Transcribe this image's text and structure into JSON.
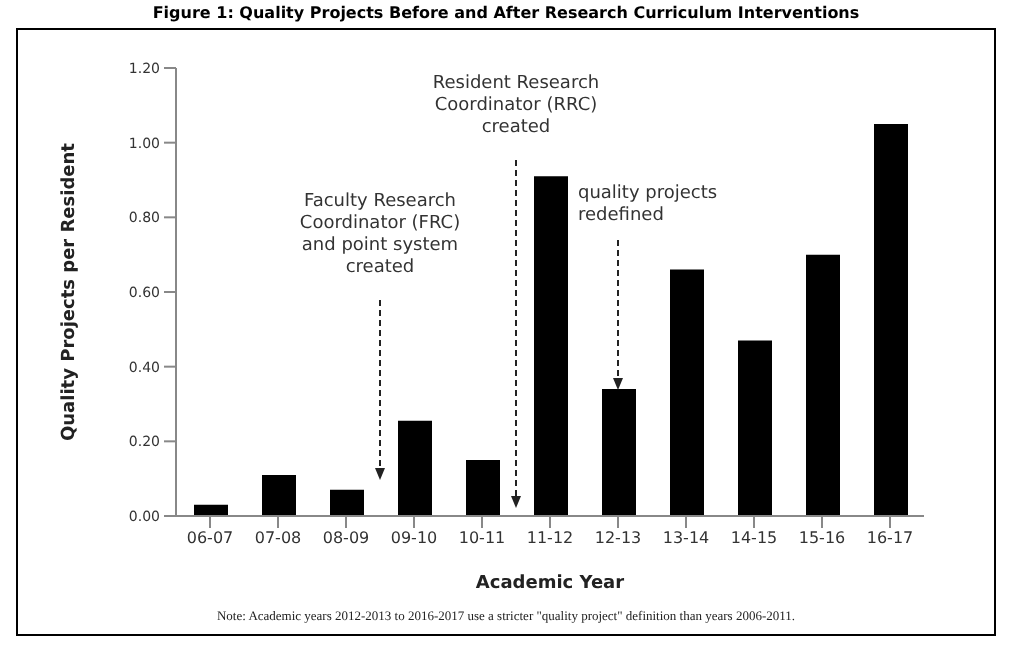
{
  "chart_data": {
    "type": "bar",
    "title": "Figure 1: Quality Projects Before and After Research Curriculum Interventions",
    "xlabel": "Academic Year",
    "ylabel": "Quality Projects per Resident",
    "categories": [
      "06-07",
      "07-08",
      "08-09",
      "09-10",
      "10-11",
      "11-12",
      "12-13",
      "13-14",
      "14-15",
      "15-16",
      "16-17"
    ],
    "values": [
      0.03,
      0.11,
      0.07,
      0.255,
      0.15,
      0.91,
      0.34,
      0.66,
      0.47,
      0.7,
      1.05
    ],
    "color": "#000000",
    "ylim": [
      0,
      1.2
    ],
    "yticks": [
      {
        "value": 0,
        "label": "0.00"
      },
      {
        "value": 0.2,
        "label": "0.20"
      },
      {
        "value": 0.4,
        "label": "0.40"
      },
      {
        "value": 0.6,
        "label": "0.60"
      },
      {
        "value": 0.8,
        "label": "0.80"
      },
      {
        "value": 1,
        "label": "1.00"
      },
      {
        "value": 1.2,
        "label": "1.20"
      }
    ],
    "grid": false,
    "legend": false,
    "annotations": [
      "Faculty Research\nCoordinator (FRC)\nand point system\ncreated",
      "Resident Research\nCoordinator (RRC)\ncreated",
      "quality projects\nredefined",
      "Note: Academic years 2012-2013 to 2016-2017 use a stricter \"quality project\" definition than years 2006-2011."
    ]
  }
}
